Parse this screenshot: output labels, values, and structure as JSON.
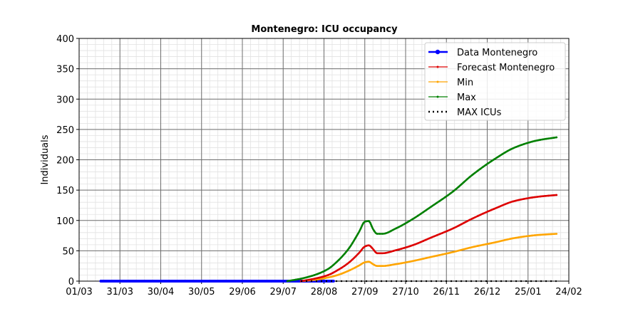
{
  "chart_data": {
    "type": "line",
    "title": "Montenegro: ICU occupancy",
    "xlabel": "",
    "ylabel": "Individuals",
    "ylim": [
      0,
      400
    ],
    "yticks": [
      0,
      50,
      100,
      150,
      200,
      250,
      300,
      350,
      400
    ],
    "xlim": [
      "2020-03-01",
      "2021-02-24"
    ],
    "xticks": [
      "2020-03-01",
      "2020-03-31",
      "2020-04-30",
      "2020-05-30",
      "2020-06-29",
      "2020-07-29",
      "2020-08-28",
      "2020-09-27",
      "2020-10-27",
      "2020-11-26",
      "2020-12-26",
      "2021-01-25",
      "2021-02-24"
    ],
    "xtick_labels": [
      "01/03",
      "31/03",
      "30/04",
      "30/05",
      "29/06",
      "29/07",
      "28/08",
      "27/09",
      "27/10",
      "26/11",
      "26/12",
      "25/01",
      "24/02"
    ],
    "grid": true,
    "legend_position": "top-right",
    "series": [
      {
        "name": "Data Montenegro",
        "color": "#0000ff",
        "style": "solid-dots",
        "points": [
          [
            "2020-03-17",
            0
          ],
          [
            "2020-04-15",
            0
          ],
          [
            "2020-05-15",
            0
          ],
          [
            "2020-06-15",
            0
          ],
          [
            "2020-07-15",
            0
          ],
          [
            "2020-08-15",
            0
          ],
          [
            "2020-09-04",
            0
          ]
        ]
      },
      {
        "name": "Forecast Montenegro",
        "color": "#dd0000",
        "style": "solid-thin",
        "points": [
          [
            "2020-08-11",
            0
          ],
          [
            "2020-08-21",
            4
          ],
          [
            "2020-08-31",
            10
          ],
          [
            "2020-09-07",
            18
          ],
          [
            "2020-09-15",
            30
          ],
          [
            "2020-09-23",
            47
          ],
          [
            "2020-09-27",
            57
          ],
          [
            "2020-09-30",
            59
          ],
          [
            "2020-10-03",
            53
          ],
          [
            "2020-10-06",
            46
          ],
          [
            "2020-10-10",
            46
          ],
          [
            "2020-10-20",
            51
          ],
          [
            "2020-11-01",
            59
          ],
          [
            "2020-11-15",
            72
          ],
          [
            "2020-12-01",
            87
          ],
          [
            "2020-12-15",
            103
          ],
          [
            "2021-01-01",
            120
          ],
          [
            "2021-01-15",
            132
          ],
          [
            "2021-02-01",
            139
          ],
          [
            "2021-02-15",
            142
          ]
        ]
      },
      {
        "name": "Min",
        "color": "#ffa500",
        "style": "solid-thin",
        "points": [
          [
            "2020-08-11",
            0
          ],
          [
            "2020-08-21",
            2
          ],
          [
            "2020-08-31",
            6
          ],
          [
            "2020-09-07",
            10
          ],
          [
            "2020-09-15",
            17
          ],
          [
            "2020-09-23",
            26
          ],
          [
            "2020-09-27",
            31
          ],
          [
            "2020-09-30",
            32
          ],
          [
            "2020-10-03",
            28
          ],
          [
            "2020-10-06",
            25
          ],
          [
            "2020-10-10",
            25
          ],
          [
            "2020-10-20",
            28
          ],
          [
            "2020-11-01",
            33
          ],
          [
            "2020-11-15",
            40
          ],
          [
            "2020-12-01",
            48
          ],
          [
            "2020-12-15",
            56
          ],
          [
            "2021-01-01",
            64
          ],
          [
            "2021-01-15",
            71
          ],
          [
            "2021-02-01",
            76
          ],
          [
            "2021-02-15",
            78
          ]
        ]
      },
      {
        "name": "Max",
        "color": "#008000",
        "style": "solid-thin",
        "points": [
          [
            "2020-08-01",
            0
          ],
          [
            "2020-08-11",
            4
          ],
          [
            "2020-08-21",
            10
          ],
          [
            "2020-08-31",
            20
          ],
          [
            "2020-09-07",
            33
          ],
          [
            "2020-09-15",
            53
          ],
          [
            "2020-09-23",
            82
          ],
          [
            "2020-09-27",
            98
          ],
          [
            "2020-09-30",
            99
          ],
          [
            "2020-10-03",
            86
          ],
          [
            "2020-10-06",
            78
          ],
          [
            "2020-10-10",
            78
          ],
          [
            "2020-10-20",
            87
          ],
          [
            "2020-11-01",
            102
          ],
          [
            "2020-11-15",
            123
          ],
          [
            "2020-12-01",
            148
          ],
          [
            "2020-12-15",
            175
          ],
          [
            "2021-01-01",
            202
          ],
          [
            "2021-01-15",
            220
          ],
          [
            "2021-02-01",
            232
          ],
          [
            "2021-02-15",
            237
          ]
        ]
      },
      {
        "name": "MAX ICUs",
        "color": "#000000",
        "style": "dotted",
        "points": [
          [
            "2020-08-11",
            0
          ],
          [
            "2021-02-15",
            0
          ]
        ]
      }
    ]
  }
}
